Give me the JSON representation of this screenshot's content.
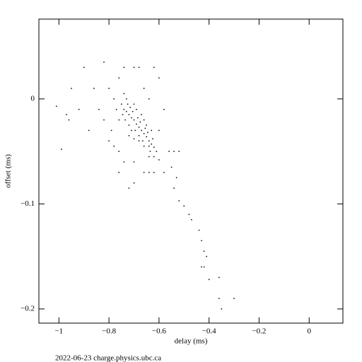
{
  "chart_data": {
    "type": "scatter",
    "xlabel": "delay (ms)",
    "ylabel": "offset (ms)",
    "footer": "2022-06-23 charge.physics.ubc.ca",
    "color": "#000000",
    "xlim": [
      -1.08,
      0.135
    ],
    "ylim": [
      -0.2135,
      0.076
    ],
    "xticks": [
      {
        "value": -1,
        "label": "−1"
      },
      {
        "value": -0.8,
        "label": "−0.8"
      },
      {
        "value": -0.6,
        "label": "−0.6"
      },
      {
        "value": -0.4,
        "label": "−0.4"
      },
      {
        "value": -0.2,
        "label": "−0.2"
      },
      0
    ],
    "yticks": [
      0,
      {
        "value": -0.1,
        "label": "−0.1"
      },
      {
        "value": -0.2,
        "label": "−0.2"
      }
    ],
    "x": [
      -0.75,
      -0.74,
      -0.73,
      -0.72,
      -0.71,
      -0.7,
      -0.69,
      -0.68,
      -0.67,
      -0.66,
      -0.65,
      -0.64,
      -0.63,
      -0.62,
      -0.61,
      -0.745,
      -0.735,
      -0.725,
      -0.715,
      -0.705,
      -0.695,
      -0.685,
      -0.675,
      -0.665,
      -0.655,
      -0.645,
      -0.635,
      -0.625,
      -0.73,
      -0.72,
      -0.71,
      -0.7,
      -0.69,
      -0.68,
      -0.67,
      -0.66,
      -0.65,
      -0.64,
      -0.63,
      -0.76,
      -0.74,
      -0.72,
      -0.7,
      -0.68,
      -0.66,
      -0.64,
      -0.62,
      -0.6,
      -0.77,
      -0.78,
      -0.8,
      -0.82,
      -0.79,
      -0.76,
      -0.7,
      -0.74,
      -0.66,
      -0.62,
      -0.64,
      -0.58,
      -0.6,
      -0.56,
      -0.58,
      -0.62,
      -0.66,
      -0.7,
      -0.76,
      -0.8,
      -0.84,
      -0.86,
      -0.9,
      -0.88,
      -0.92,
      -0.95,
      -0.96,
      -1.01,
      -0.97,
      -0.99,
      -0.76,
      -0.7,
      -0.72,
      -0.64,
      -0.54,
      -0.52,
      -0.55,
      -0.53,
      -0.82,
      -0.68,
      -0.6,
      -0.78,
      -0.74,
      -0.54,
      -0.52,
      -0.5,
      -0.48,
      -0.47,
      -0.44,
      -0.43,
      -0.42,
      -0.41,
      -0.42,
      -0.43,
      -0.4,
      -0.36,
      -0.36,
      -0.35,
      -0.3
    ],
    "values": [
      -0.005,
      -0.01,
      -0.012,
      -0.015,
      -0.018,
      -0.02,
      -0.024,
      -0.027,
      -0.03,
      -0.033,
      -0.036,
      -0.04,
      -0.043,
      -0.046,
      -0.05,
      -0.015,
      -0.02,
      -0.005,
      -0.008,
      -0.012,
      -0.03,
      -0.018,
      -0.022,
      -0.04,
      -0.028,
      -0.032,
      -0.05,
      -0.038,
      0.0,
      -0.025,
      -0.03,
      -0.005,
      -0.01,
      -0.035,
      -0.015,
      -0.045,
      -0.025,
      -0.055,
      -0.03,
      -0.02,
      0.005,
      -0.035,
      -0.038,
      -0.04,
      -0.02,
      -0.045,
      -0.055,
      -0.058,
      -0.01,
      0.0,
      0.01,
      -0.02,
      -0.03,
      0.02,
      0.03,
      0.03,
      0.01,
      0.03,
      0.0,
      -0.01,
      -0.03,
      -0.05,
      -0.07,
      -0.07,
      -0.07,
      -0.06,
      -0.05,
      -0.04,
      -0.01,
      0.01,
      0.03,
      -0.03,
      -0.01,
      0.01,
      -0.02,
      -0.007,
      -0.015,
      -0.048,
      -0.07,
      -0.08,
      -0.085,
      -0.07,
      -0.05,
      -0.05,
      -0.065,
      -0.075,
      0.035,
      0.03,
      0.02,
      -0.045,
      -0.06,
      -0.085,
      -0.097,
      -0.102,
      -0.11,
      -0.115,
      -0.125,
      -0.135,
      -0.145,
      -0.15,
      -0.16,
      -0.16,
      -0.172,
      -0.17,
      -0.19,
      -0.2,
      -0.19
    ]
  }
}
